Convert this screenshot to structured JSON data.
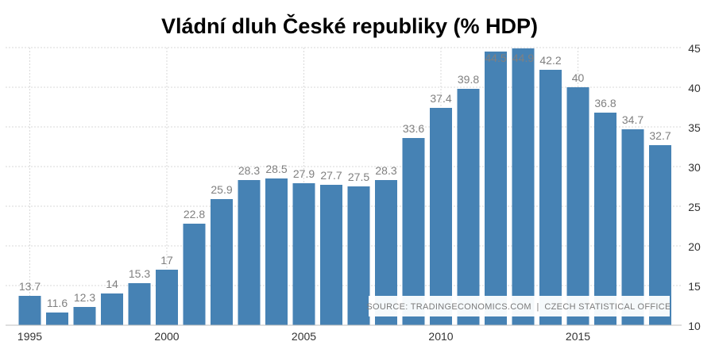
{
  "chart_data": {
    "type": "bar",
    "title": "Vládní dluh České republiky (% HDP)",
    "x": [
      1995,
      1996,
      1997,
      1998,
      1999,
      2000,
      2001,
      2002,
      2003,
      2004,
      2005,
      2006,
      2007,
      2008,
      2009,
      2010,
      2011,
      2012,
      2013,
      2014,
      2015,
      2016,
      2017,
      2018
    ],
    "values": [
      13.7,
      11.6,
      12.3,
      14,
      15.3,
      17,
      22.8,
      25.9,
      28.3,
      28.5,
      27.9,
      27.7,
      27.5,
      28.3,
      33.6,
      37.4,
      39.8,
      44.5,
      44.9,
      42.2,
      40,
      36.8,
      34.7,
      32.7
    ],
    "value_labels": [
      "13.7",
      "11.6",
      "12.3",
      "14",
      "15.3",
      "17",
      "22.8",
      "25.9",
      "28.3",
      "28.5",
      "27.9",
      "27.7",
      "27.5",
      "28.3",
      "33.6",
      "37.4",
      "39.8",
      "44.5",
      "44.9",
      "42.2",
      "40",
      "36.8",
      "34.7",
      "32.7"
    ],
    "x_ticks": [
      {
        "value": 1995,
        "label": "1995"
      },
      {
        "value": 2000,
        "label": "2000"
      },
      {
        "value": 2005,
        "label": "2005"
      },
      {
        "value": 2010,
        "label": "2010"
      },
      {
        "value": 2015,
        "label": "2015"
      }
    ],
    "y_ticks": [
      {
        "value": 10,
        "label": "10"
      },
      {
        "value": 15,
        "label": "15"
      },
      {
        "value": 20,
        "label": "20"
      },
      {
        "value": 25,
        "label": "25"
      },
      {
        "value": 30,
        "label": "30"
      },
      {
        "value": 35,
        "label": "35"
      },
      {
        "value": 40,
        "label": "40"
      },
      {
        "value": 45,
        "label": "45"
      }
    ],
    "ylim": [
      10,
      45
    ],
    "y_axis_side": "right",
    "grid": true,
    "bar_color": "#4682b4",
    "label_color": "#808080",
    "source_note": "SOURCE: TRADINGECONOMICS.COM  |  CZECH STATISTICAL OFFICE"
  }
}
